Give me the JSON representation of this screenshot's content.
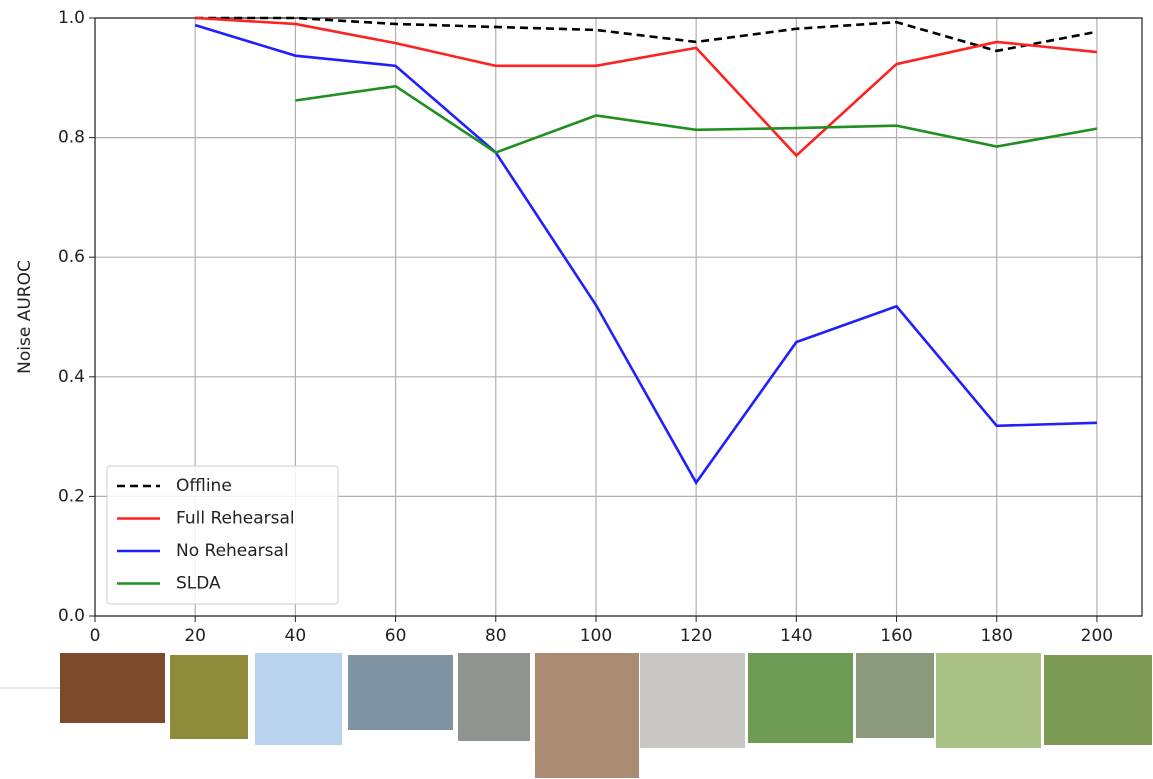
{
  "chart_data": {
    "type": "line",
    "y_label": "Noise AUROC",
    "x": [
      20,
      40,
      60,
      80,
      100,
      120,
      140,
      160,
      180,
      200
    ],
    "series": [
      {
        "name": "Offline",
        "color": "#000000",
        "linestyle": "dashed",
        "values": [
          1.0,
          1.0,
          0.99,
          0.985,
          0.98,
          0.96,
          0.982,
          0.993,
          0.945,
          0.977
        ]
      },
      {
        "name": "Full Rehearsal",
        "color": "#ff2020",
        "linestyle": "solid",
        "values": [
          1.0,
          0.99,
          0.958,
          0.92,
          0.92,
          0.95,
          0.77,
          0.923,
          0.96,
          0.943
        ]
      },
      {
        "name": "No Rehearsal",
        "color": "#2020ff",
        "linestyle": "solid",
        "values": [
          0.988,
          0.937,
          0.92,
          0.775,
          0.52,
          0.223,
          0.458,
          0.518,
          0.318,
          0.323
        ]
      },
      {
        "name": "SLDA",
        "color": "#1f8f1f",
        "linestyle": "solid",
        "values": [
          null,
          0.862,
          0.886,
          0.775,
          0.837,
          0.813,
          0.816,
          0.82,
          0.785,
          0.815
        ]
      }
    ],
    "xlim": [
      0,
      209
    ],
    "ylim": [
      0,
      1
    ],
    "xticks": [
      0,
      20,
      40,
      60,
      80,
      100,
      120,
      140,
      160,
      180,
      200
    ],
    "yticks": [
      {
        "value": 0,
        "label": "0.0"
      },
      {
        "value": 0.2,
        "label": "0.2"
      },
      {
        "value": 0.4,
        "label": "0.4"
      },
      {
        "value": 0.6,
        "label": "0.6"
      },
      {
        "value": 0.8,
        "label": "0.8"
      },
      {
        "value": 1,
        "label": "1.0"
      }
    ],
    "grid": true,
    "legend": "lower left"
  }
}
